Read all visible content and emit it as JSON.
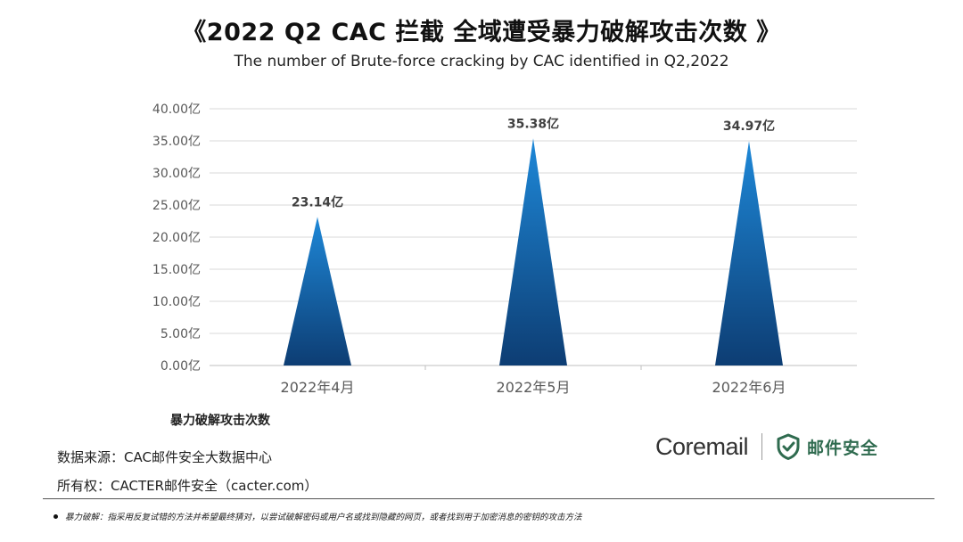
{
  "title": "《2022 Q2 CAC 拦截 全域遭受暴力破解攻击次数 》",
  "subtitle": "The number of Brute-force cracking by CAC identified in Q2,2022",
  "chart_data": {
    "type": "bar",
    "mark_shape": "triangle",
    "categories": [
      "2022年4月",
      "2022年5月",
      "2022年6月"
    ],
    "values": [
      23.14,
      35.38,
      34.97
    ],
    "data_labels": [
      "23.14亿",
      "35.38亿",
      "34.97亿"
    ],
    "ylim": [
      0,
      40
    ],
    "yticks": [
      "0.00亿",
      "5.00亿",
      "10.00亿",
      "15.00亿",
      "20.00亿",
      "25.00亿",
      "30.00亿",
      "35.00亿",
      "40.00亿"
    ],
    "title": "",
    "xlabel": "",
    "ylabel": "",
    "grid": true,
    "legend": "bottom-left",
    "legend_label": "暴力破解攻击次数",
    "colors": {
      "fill_top": "#1e88d8",
      "fill_bottom": "#0d3d73",
      "grid": "#d9d9d9"
    }
  },
  "source_text": "数据来源：CAC邮件安全大数据中心",
  "copyright_text": "所有权：CACTER邮件安全（cacter.com）",
  "logo": {
    "brand": "Coremail",
    "cn_name": "邮件安全",
    "icon": "shield-check-icon",
    "color": "#2f6b4f"
  },
  "footnote": {
    "term": "暴力破解：",
    "text": "指采用反复试错的方法并希望最终猜对，以尝试破解密码或用户名或找到隐藏的网页，或者找到用于加密消息的密钥的攻击方法"
  }
}
